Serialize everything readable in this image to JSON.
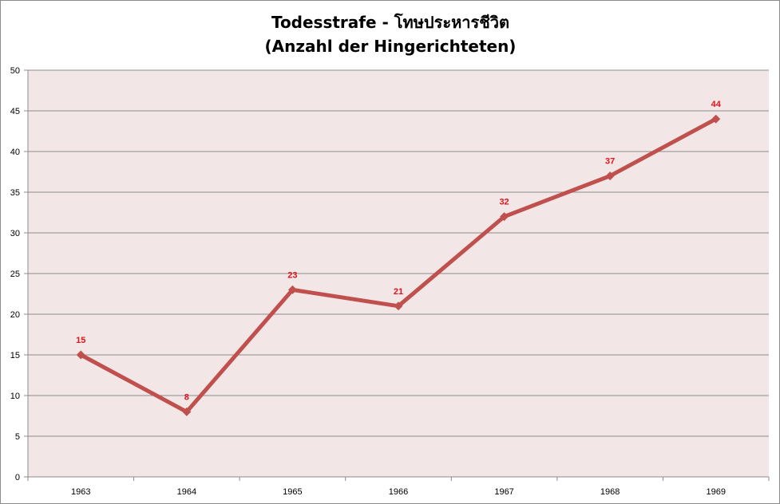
{
  "chart_data": {
    "type": "line",
    "title": "Todesstrafe - โทษประหารชีวิต",
    "subtitle": "(Anzahl der Hingerichteten)",
    "xlabel": "",
    "ylabel": "",
    "categories": [
      "1963",
      "1964",
      "1965",
      "1966",
      "1967",
      "1968",
      "1969"
    ],
    "series": [
      {
        "values": [
          15,
          8,
          23,
          21,
          32,
          37,
          44
        ]
      }
    ],
    "data_labels": [
      "15",
      "8",
      "23",
      "21",
      "32",
      "37",
      "44"
    ],
    "ylim": [
      0,
      50
    ],
    "yticks": [
      "0",
      "5",
      "10",
      "15",
      "20",
      "25",
      "30",
      "35",
      "40",
      "45",
      "50"
    ],
    "grid": true,
    "legend": "none",
    "colors": {
      "line": "#c0504d",
      "data_label": "#e0141e",
      "plot_background": "#f2e6e6",
      "gridline": "#8c8c8c"
    }
  }
}
